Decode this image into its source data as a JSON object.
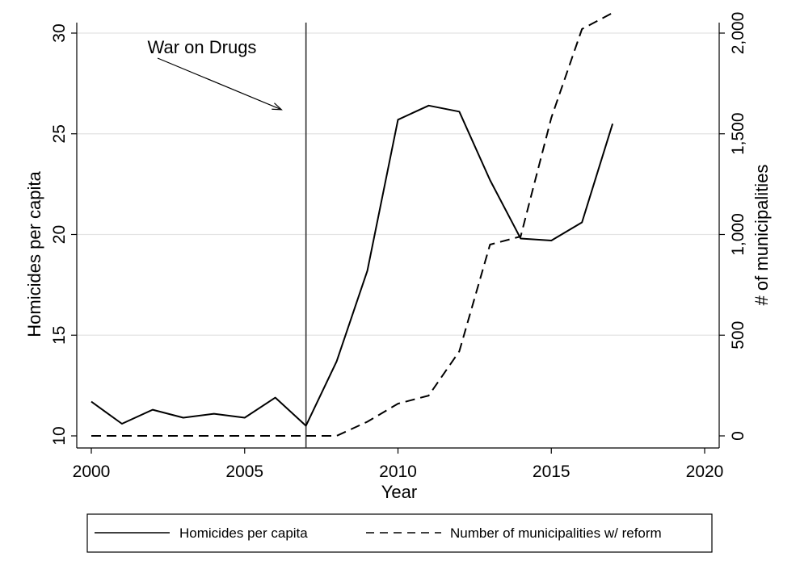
{
  "chart_data": {
    "type": "line",
    "title": "",
    "xlabel": "Year",
    "ylabel": "Homicides per capita",
    "y2label": "# of municipalities",
    "xlim": [
      2000,
      2020
    ],
    "ylim": [
      10,
      30
    ],
    "y2lim": [
      0,
      2000
    ],
    "x_ticks": [
      "2000",
      "2005",
      "2010",
      "2015",
      "2020"
    ],
    "y_ticks": [
      "10",
      "15",
      "20",
      "25",
      "30"
    ],
    "y2_ticks": [
      "0",
      "500",
      "1,000",
      "1,500",
      "2,000"
    ],
    "grid": "horizontal",
    "vline": 2007,
    "annotation": {
      "text": "War on Drugs",
      "arrow_to_x": 2006.2,
      "arrow_to_y": 26.2
    },
    "legend_position": "bottom",
    "series": [
      {
        "name": "Homicides per capita",
        "axis": "left",
        "style": "solid",
        "color": "#000000",
        "x": [
          2000,
          2001,
          2002,
          2003,
          2004,
          2005,
          2006,
          2007,
          2008,
          2009,
          2010,
          2011,
          2012,
          2013,
          2014,
          2015,
          2016,
          2017
        ],
        "y": [
          11.7,
          10.6,
          11.3,
          10.9,
          11.1,
          10.9,
          11.9,
          10.5,
          13.7,
          18.2,
          25.7,
          26.4,
          26.1,
          22.7,
          19.8,
          19.7,
          20.6,
          25.5
        ]
      },
      {
        "name": "Number of municipalities w/ reform",
        "axis": "right",
        "style": "dashed",
        "color": "#000000",
        "x": [
          2000,
          2001,
          2002,
          2003,
          2004,
          2005,
          2006,
          2007,
          2008,
          2009,
          2010,
          2011,
          2012,
          2013,
          2014,
          2015,
          2016,
          2017
        ],
        "y": [
          0,
          0,
          0,
          0,
          0,
          0,
          0,
          0,
          0,
          70,
          160,
          200,
          420,
          950,
          990,
          1580,
          2020,
          2100
        ]
      }
    ]
  }
}
